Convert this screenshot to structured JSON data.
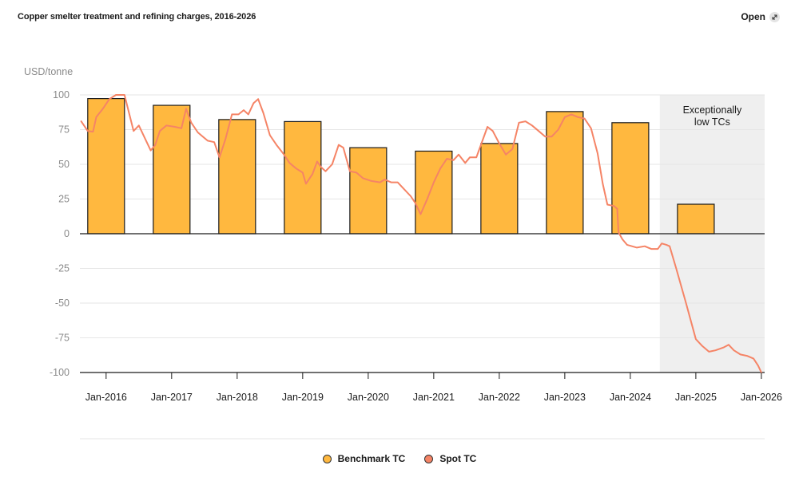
{
  "header": {
    "title": "Copper smelter treatment and refining charges, 2016-2026",
    "open_label": "Open"
  },
  "colors": {
    "benchmark": "#ffb83f",
    "spot": "#f58466",
    "shade": "#efefef",
    "grid": "#e6e6e6"
  },
  "chart_data": {
    "type": "bar",
    "title": "Copper smelter treatment and refining charges, 2016-2026",
    "ylabel": "USD/tonne",
    "ylim": [
      -100,
      100
    ],
    "yticks": [
      100,
      75,
      50,
      25,
      0,
      -25,
      -50,
      -75,
      -100
    ],
    "xlim": [
      2015.6,
      2026.05
    ],
    "xticks": [
      {
        "label": "Jan-2016",
        "x": 2016
      },
      {
        "label": "Jan-2017",
        "x": 2017
      },
      {
        "label": "Jan-2018",
        "x": 2018
      },
      {
        "label": "Jan-2019",
        "x": 2019
      },
      {
        "label": "Jan-2020",
        "x": 2020
      },
      {
        "label": "Jan-2021",
        "x": 2021
      },
      {
        "label": "Jan-2022",
        "x": 2022
      },
      {
        "label": "Jan-2023",
        "x": 2023
      },
      {
        "label": "Jan-2024",
        "x": 2024
      },
      {
        "label": "Jan-2025",
        "x": 2025
      },
      {
        "label": "Jan-2026",
        "x": 2026
      }
    ],
    "annotation": {
      "text": [
        "Exceptionally",
        "low TCs"
      ],
      "x_start": 2024.45,
      "x_end": 2026.1
    },
    "series": [
      {
        "name": "Benchmark TC",
        "type": "bar",
        "x": [
          2016,
          2017,
          2018,
          2019,
          2020,
          2021,
          2022,
          2023,
          2024,
          2025
        ],
        "values": [
          97.35,
          92.5,
          82.25,
          80.8,
          62,
          59.5,
          65,
          88,
          80,
          21.25
        ]
      },
      {
        "name": "Spot TC",
        "type": "line",
        "points": [
          [
            2015.62,
            81
          ],
          [
            2015.72,
            74
          ],
          [
            2015.8,
            73.5
          ],
          [
            2015.85,
            84
          ],
          [
            2015.95,
            90
          ],
          [
            2016.05,
            97
          ],
          [
            2016.15,
            100
          ],
          [
            2016.28,
            100
          ],
          [
            2016.35,
            87
          ],
          [
            2016.42,
            74
          ],
          [
            2016.5,
            78
          ],
          [
            2016.6,
            68
          ],
          [
            2016.68,
            60
          ],
          [
            2016.75,
            64
          ],
          [
            2016.82,
            74
          ],
          [
            2016.92,
            78
          ],
          [
            2017.05,
            77
          ],
          [
            2017.15,
            76
          ],
          [
            2017.22,
            90
          ],
          [
            2017.3,
            80
          ],
          [
            2017.4,
            73
          ],
          [
            2017.55,
            67
          ],
          [
            2017.65,
            66
          ],
          [
            2017.73,
            55
          ],
          [
            2017.82,
            68
          ],
          [
            2017.92,
            86
          ],
          [
            2018.02,
            86
          ],
          [
            2018.1,
            89
          ],
          [
            2018.17,
            86
          ],
          [
            2018.25,
            94
          ],
          [
            2018.32,
            97
          ],
          [
            2018.4,
            87
          ],
          [
            2018.5,
            71
          ],
          [
            2018.6,
            64
          ],
          [
            2018.7,
            58
          ],
          [
            2018.8,
            51
          ],
          [
            2018.9,
            47
          ],
          [
            2019.0,
            44
          ],
          [
            2019.05,
            36
          ],
          [
            2019.15,
            43
          ],
          [
            2019.22,
            52
          ],
          [
            2019.28,
            48
          ],
          [
            2019.35,
            45
          ],
          [
            2019.45,
            50
          ],
          [
            2019.55,
            64
          ],
          [
            2019.62,
            62
          ],
          [
            2019.72,
            45
          ],
          [
            2019.82,
            44
          ],
          [
            2019.92,
            40
          ],
          [
            2020.05,
            38
          ],
          [
            2020.18,
            37
          ],
          [
            2020.25,
            39
          ],
          [
            2020.35,
            37
          ],
          [
            2020.45,
            37
          ],
          [
            2020.55,
            32
          ],
          [
            2020.65,
            27
          ],
          [
            2020.72,
            22
          ],
          [
            2020.8,
            14
          ],
          [
            2020.9,
            25
          ],
          [
            2021.0,
            37
          ],
          [
            2021.1,
            47
          ],
          [
            2021.2,
            54
          ],
          [
            2021.3,
            53
          ],
          [
            2021.38,
            57
          ],
          [
            2021.48,
            51
          ],
          [
            2021.55,
            55
          ],
          [
            2021.65,
            55
          ],
          [
            2021.72,
            64
          ],
          [
            2021.82,
            77
          ],
          [
            2021.9,
            74
          ],
          [
            2022.0,
            65
          ],
          [
            2022.1,
            57
          ],
          [
            2022.2,
            61
          ],
          [
            2022.3,
            80
          ],
          [
            2022.4,
            81
          ],
          [
            2022.5,
            78
          ],
          [
            2022.6,
            74
          ],
          [
            2022.7,
            70
          ],
          [
            2022.8,
            70
          ],
          [
            2022.9,
            75
          ],
          [
            2023.0,
            84
          ],
          [
            2023.1,
            86
          ],
          [
            2023.2,
            84
          ],
          [
            2023.3,
            83
          ],
          [
            2023.4,
            76
          ],
          [
            2023.5,
            58
          ],
          [
            2023.58,
            36
          ],
          [
            2023.65,
            21
          ],
          [
            2023.75,
            20
          ],
          [
            2023.8,
            18
          ],
          [
            2023.82,
            1
          ],
          [
            2023.88,
            -4
          ],
          [
            2023.95,
            -8
          ],
          [
            2024.1,
            -10
          ],
          [
            2024.22,
            -9
          ],
          [
            2024.32,
            -11
          ],
          [
            2024.42,
            -11
          ],
          [
            2024.48,
            -7
          ],
          [
            2024.55,
            -8
          ],
          [
            2024.6,
            -9
          ],
          [
            2024.7,
            -25
          ],
          [
            2024.85,
            -50
          ],
          [
            2025.0,
            -76
          ],
          [
            2025.1,
            -81
          ],
          [
            2025.2,
            -85
          ],
          [
            2025.3,
            -84
          ],
          [
            2025.42,
            -82
          ],
          [
            2025.5,
            -80
          ],
          [
            2025.58,
            -84
          ],
          [
            2025.68,
            -87
          ],
          [
            2025.78,
            -88
          ],
          [
            2025.88,
            -90
          ],
          [
            2025.95,
            -95
          ],
          [
            2026.0,
            -100
          ]
        ]
      }
    ],
    "legend": [
      "Benchmark TC",
      "Spot TC"
    ]
  }
}
